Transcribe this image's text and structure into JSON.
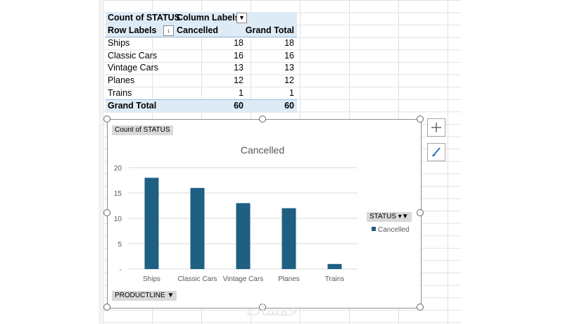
{
  "pivot": {
    "header1": {
      "label": "Count of STATUS",
      "column_labels": "Column Labels"
    },
    "header2": {
      "row_labels": "Row Labels",
      "col1": "Cancelled",
      "col2": "Grand Total"
    },
    "rows": [
      {
        "label": "Ships",
        "cancelled": "18",
        "total": "18"
      },
      {
        "label": "Classic Cars",
        "cancelled": "16",
        "total": "16"
      },
      {
        "label": "Vintage Cars",
        "cancelled": "13",
        "total": "13"
      },
      {
        "label": "Planes",
        "cancelled": "12",
        "total": "12"
      },
      {
        "label": "Trains",
        "cancelled": "1",
        "total": "1"
      }
    ],
    "grand_total": {
      "label": "Grand Total",
      "cancelled": "60",
      "total": "60"
    }
  },
  "chart_buttons": {
    "value_field": "Count of STATUS",
    "legend_field": "STATUS",
    "axis_field": "PRODUCTLINE"
  },
  "chart_data": {
    "type": "bar",
    "title": "Cancelled",
    "categories": [
      "Ships",
      "Classic Cars",
      "Vintage Cars",
      "Planes",
      "Trains"
    ],
    "series": [
      {
        "name": "Cancelled",
        "values": [
          18,
          16,
          13,
          12,
          1
        ]
      }
    ],
    "ylim": [
      0,
      20
    ],
    "yticks": [
      "20",
      "15",
      "10",
      "5",
      "-"
    ],
    "xlabel": "",
    "ylabel": "",
    "legend": "right",
    "grid": true,
    "bar_color": "#1f5f82"
  },
  "watermark": "خمسات"
}
